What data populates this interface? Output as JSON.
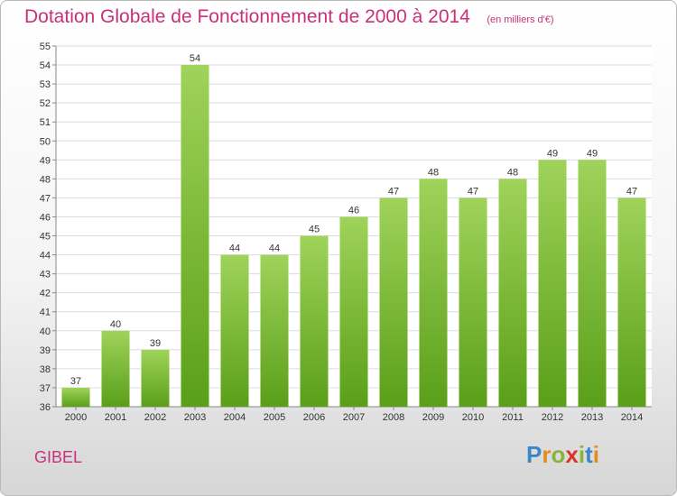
{
  "title": "Dotation Globale de Fonctionnement de 2000 à 2014",
  "subtitle": "(en milliers d'€)",
  "commune": "GIBEL",
  "logo": {
    "text": "Proxiti"
  },
  "colors": {
    "title": "#c8317a",
    "bar_top": "#9fd35a",
    "bar_bottom": "#5a9f18",
    "grid": "#dcdcdc"
  },
  "chart_data": {
    "type": "bar",
    "title": "Dotation Globale de Fonctionnement de 2000 à 2014",
    "subtitle": "(en milliers d'€)",
    "categories": [
      "2000",
      "2001",
      "2002",
      "2003",
      "2004",
      "2005",
      "2006",
      "2007",
      "2008",
      "2009",
      "2010",
      "2011",
      "2012",
      "2013",
      "2014"
    ],
    "values": [
      37,
      40,
      39,
      54,
      44,
      44,
      45,
      46,
      47,
      48,
      47,
      48,
      49,
      49,
      47
    ],
    "ylim": [
      36,
      55
    ],
    "yticks": [
      36,
      37,
      38,
      39,
      40,
      41,
      42,
      43,
      44,
      45,
      46,
      47,
      48,
      49,
      50,
      51,
      52,
      53,
      54,
      55
    ],
    "xlabel": "",
    "ylabel": "",
    "grid": true
  }
}
